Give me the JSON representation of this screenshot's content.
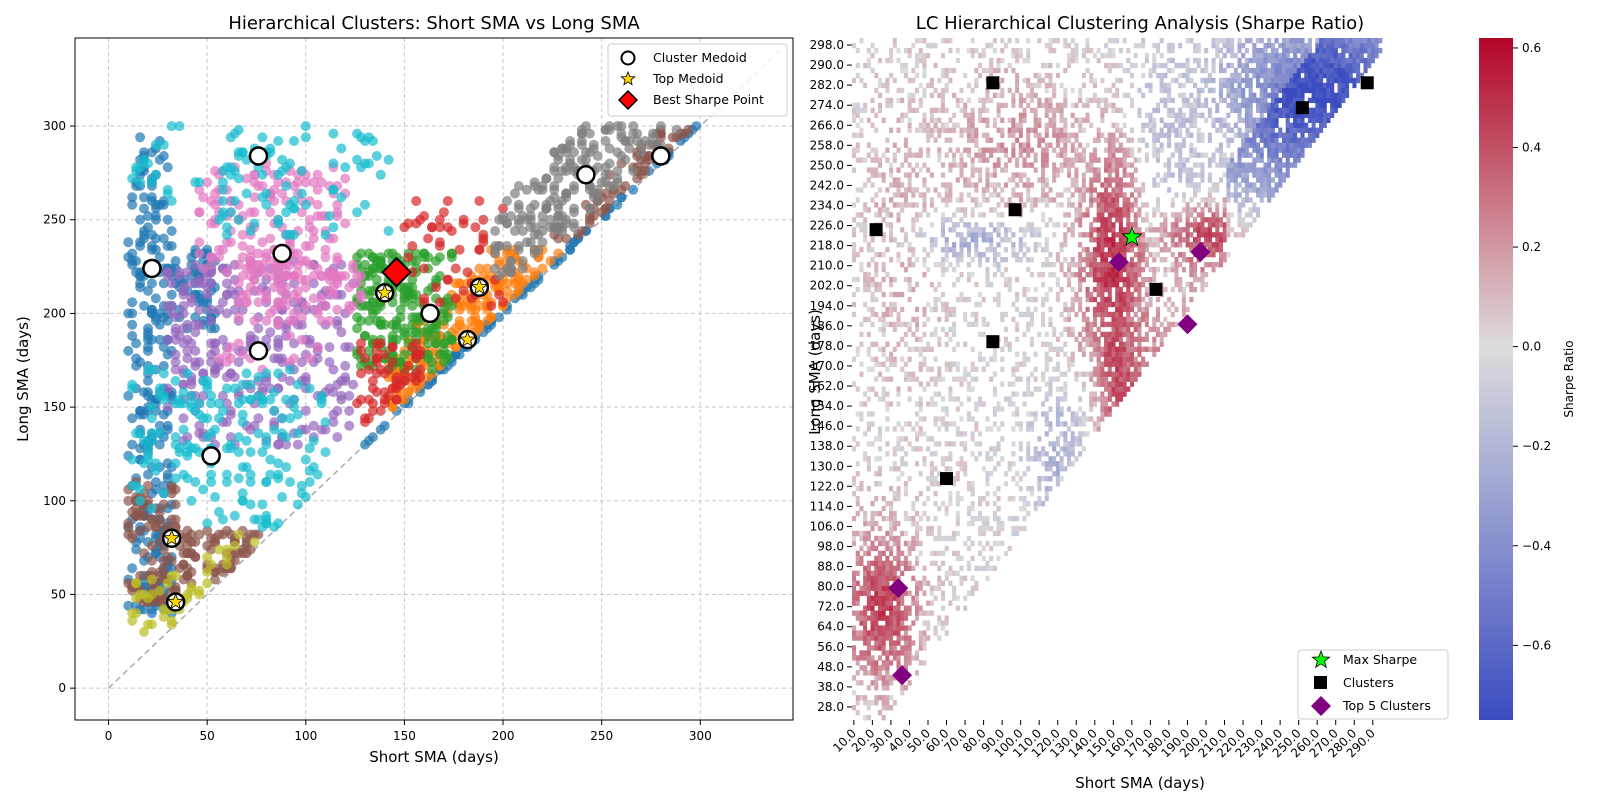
{
  "chart_data": [
    {
      "type": "scatter",
      "title": "Hierarchical Clusters: Short SMA vs Long SMA",
      "xlabel": "Short SMA (days)",
      "ylabel": "Long SMA (days)",
      "xlim": [
        -17,
        347
      ],
      "ylim": [
        -17,
        347
      ],
      "xticks": [
        0,
        50,
        100,
        150,
        200,
        250,
        300
      ],
      "yticks": [
        0,
        50,
        100,
        150,
        200,
        250,
        300
      ],
      "grid": true,
      "legend_position": "top-right",
      "legend": [
        {
          "label": "Cluster Medoid",
          "marker": "circle-open"
        },
        {
          "label": "Top Medoid",
          "marker": "star"
        },
        {
          "label": "Best Sharpe Point",
          "marker": "diamond"
        }
      ],
      "reference_line": {
        "from": [
          0,
          0
        ],
        "to": [
          340,
          340
        ],
        "style": "dashed",
        "color": "#aaaaaa"
      },
      "clusters": [
        {
          "color": "#1f77b4",
          "regions": [
            {
              "x": [
                10,
                32
              ],
              "y": [
                40,
                295
              ],
              "n": 260
            },
            {
              "x": [
                32,
                55
              ],
              "y": [
                190,
                235
              ],
              "n": 60
            },
            {
              "x": [
                130,
                300
              ],
              "ydelta": [
                -3,
                3
              ],
              "n": 90
            }
          ]
        },
        {
          "color": "#ff7f0e",
          "regions": [
            {
              "x": [
                140,
                230
              ],
              "ydelta": [
                3,
                40
              ],
              "ymin": 150,
              "ymax": 235,
              "n": 200
            }
          ]
        },
        {
          "color": "#2ca02c",
          "regions": [
            {
              "x": [
                125,
                175
              ],
              "y": [
                170,
                232
              ],
              "n": 220
            }
          ]
        },
        {
          "color": "#d62728",
          "regions": [
            {
              "x": [
                125,
                160
              ],
              "y": [
                140,
                185
              ],
              "ydeltaMin": 5,
              "n": 60
            },
            {
              "x": [
                150,
                200
              ],
              "y": [
                200,
                262
              ],
              "n": 50
            }
          ]
        },
        {
          "color": "#9467bd",
          "regions": [
            {
              "x": [
                30,
                125
              ],
              "y": [
                130,
                228
              ],
              "ydeltaMin": 10,
              "n": 280
            }
          ]
        },
        {
          "color": "#8c564b",
          "regions": [
            {
              "x": [
                10,
                35
              ],
              "y": [
                45,
                110
              ],
              "n": 100
            },
            {
              "x": [
                35,
                80
              ],
              "y": [
                55,
                85
              ],
              "n": 70
            },
            {
              "x": [
                200,
                300
              ],
              "ydelta": [
                2,
                20
              ],
              "ymin": 240,
              "n": 60
            }
          ]
        },
        {
          "color": "#e377c2",
          "regions": [
            {
              "x": [
                45,
                120
              ],
              "y": [
                220,
                280
              ],
              "n": 150
            },
            {
              "x": [
                65,
                130
              ],
              "y": [
                195,
                228
              ],
              "n": 90
            },
            {
              "x": [
                55,
                115
              ],
              "y": [
                170,
                200
              ],
              "n": 20
            }
          ]
        },
        {
          "color": "#7f7f7f",
          "regions": [
            {
              "x": [
                195,
                300
              ],
              "ydelta": [
                10,
                60
              ],
              "ymin": 220,
              "ymax": 300,
              "n": 190
            }
          ]
        },
        {
          "color": "#bcbd22",
          "regions": [
            {
              "x": [
                10,
                40
              ],
              "y": [
                30,
                60
              ],
              "n": 30
            },
            {
              "x": [
                40,
                80
              ],
              "ydelta": [
                2,
                20
              ],
              "ymax": 82,
              "n": 15
            }
          ]
        },
        {
          "color": "#17becf",
          "regions": [
            {
              "x": [
                10,
                30
              ],
              "y": [
                95,
                170
              ],
              "n": 30
            },
            {
              "x": [
                30,
                110
              ],
              "y": [
                85,
                170
              ],
              "ydeltaMin": 2,
              "n": 150
            },
            {
              "x": [
                55,
                100
              ],
              "y": [
                240,
                300
              ],
              "n": 60
            },
            {
              "x": [
                10,
                60
              ],
              "y": [
                260,
                300
              ],
              "n": 20
            },
            {
              "x": [
                110,
                145
              ],
              "y": [
                240,
                300
              ],
              "n": 25
            }
          ]
        }
      ],
      "medoids": [
        {
          "x": 22,
          "y": 224
        },
        {
          "x": 76,
          "y": 284
        },
        {
          "x": 88,
          "y": 232
        },
        {
          "x": 76,
          "y": 180
        },
        {
          "x": 52,
          "y": 124
        },
        {
          "x": 163,
          "y": 200
        },
        {
          "x": 242,
          "y": 274
        },
        {
          "x": 280,
          "y": 284
        }
      ],
      "top_medoids": [
        {
          "x": 140,
          "y": 211
        },
        {
          "x": 188,
          "y": 214
        },
        {
          "x": 182,
          "y": 186
        },
        {
          "x": 32,
          "y": 80
        },
        {
          "x": 34,
          "y": 46
        }
      ],
      "best_sharpe_point": {
        "x": 146,
        "y": 222
      }
    },
    {
      "type": "heatmap",
      "title": "LC Hierarchical Clustering Analysis (Sharpe Ratio)",
      "xlabel": "Short SMA (days)",
      "ylabel": "Long SMA (days)",
      "xtick_labels": [
        "10.0",
        "20.0",
        "30.0",
        "40.0",
        "50.0",
        "60.0",
        "70.0",
        "80.0",
        "90.0",
        "100.0",
        "110.0",
        "120.0",
        "130.0",
        "140.0",
        "150.0",
        "160.0",
        "170.0",
        "180.0",
        "190.0",
        "200.0",
        "210.0",
        "220.0",
        "230.0",
        "240.0",
        "250.0",
        "260.0",
        "270.0",
        "280.0",
        "290.0"
      ],
      "ytick_labels": [
        "298.0",
        "290.0",
        "282.0",
        "274.0",
        "266.0",
        "258.0",
        "250.0",
        "242.0",
        "234.0",
        "226.0",
        "218.0",
        "210.0",
        "202.0",
        "194.0",
        "186.0",
        "178.0",
        "170.0",
        "162.0",
        "154.0",
        "146.0",
        "138.0",
        "130.0",
        "122.0",
        "114.0",
        "106.0",
        "98.0",
        "88.0",
        "80.0",
        "72.0",
        "64.0",
        "56.0",
        "48.0",
        "38.0",
        "28.0"
      ],
      "colorbar": {
        "label": "Sharpe Ratio",
        "range": [
          -0.75,
          0.62
        ],
        "ticks": [
          -0.6,
          -0.4,
          -0.2,
          0.0,
          0.2,
          0.4,
          0.6
        ],
        "tick_labels": [
          "−0.6",
          "−0.4",
          "−0.2",
          "0.0",
          "0.2",
          "0.4",
          "0.6"
        ]
      },
      "legend_position": "bottom-right",
      "legend": [
        {
          "label": "Max Sharpe",
          "marker": "star"
        },
        {
          "label": "Clusters",
          "marker": "square"
        },
        {
          "label": "Top 5 Clusters",
          "marker": "diamond"
        }
      ],
      "hot_regions": [
        {
          "x": 150,
          "y": 218,
          "sx": 14,
          "sy": 40,
          "v": 0.52
        },
        {
          "x": 150,
          "y": 180,
          "sx": 10,
          "sy": 30,
          "v": 0.4
        },
        {
          "x": 200,
          "y": 222,
          "sx": 22,
          "sy": 10,
          "v": 0.45
        },
        {
          "x": 25,
          "y": 72,
          "sx": 14,
          "sy": 22,
          "v": 0.45
        },
        {
          "x": 115,
          "y": 258,
          "sx": 40,
          "sy": 20,
          "v": 0.22
        },
        {
          "x": 35,
          "y": 222,
          "sx": 14,
          "sy": 40,
          "v": 0.12
        }
      ],
      "cold_regions": [
        {
          "x": 255,
          "y": 280,
          "sx": 35,
          "sy": 20,
          "v": -0.5
        },
        {
          "x": 75,
          "y": 220,
          "sx": 25,
          "sy": 6,
          "v": -0.25
        },
        {
          "x": 130,
          "y": 130,
          "sx": 15,
          "sy": 20,
          "v": -0.3
        },
        {
          "x": 170,
          "y": 260,
          "sx": 30,
          "sy": 30,
          "v": -0.2
        }
      ],
      "max_sharpe": {
        "x": 160,
        "y": 221
      },
      "clusters": [
        {
          "x": 85,
          "y": 283
        },
        {
          "x": 252,
          "y": 273
        },
        {
          "x": 287,
          "y": 283
        },
        {
          "x": 22,
          "y": 224
        },
        {
          "x": 97,
          "y": 232
        },
        {
          "x": 173,
          "y": 200
        },
        {
          "x": 85,
          "y": 179
        },
        {
          "x": 60,
          "y": 124
        }
      ],
      "top5_clusters": [
        {
          "x": 153,
          "y": 211
        },
        {
          "x": 197,
          "y": 215
        },
        {
          "x": 190,
          "y": 186
        },
        {
          "x": 34,
          "y": 80
        },
        {
          "x": 36,
          "y": 45
        }
      ]
    }
  ]
}
